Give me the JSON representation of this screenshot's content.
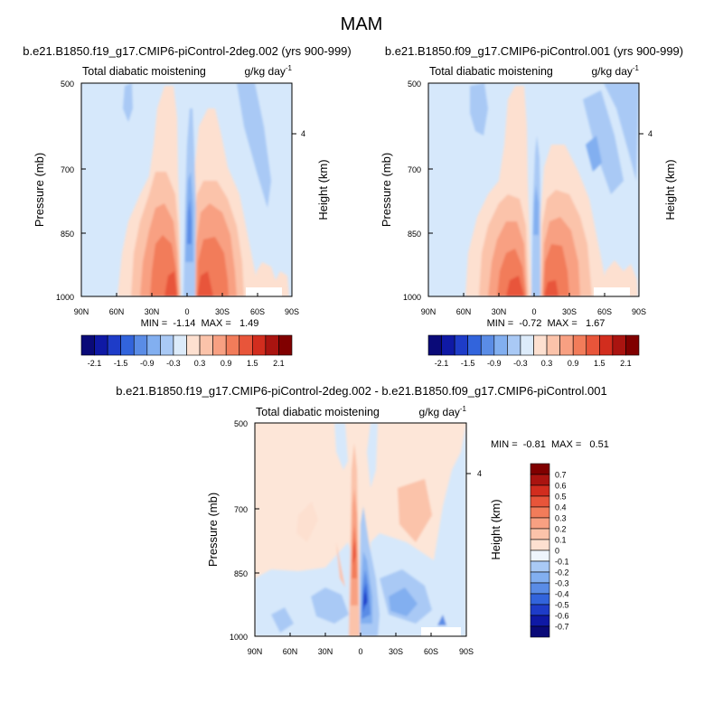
{
  "figure": {
    "title": "MAM"
  },
  "panels": {
    "p1": {
      "title": "b.e21.B1850.f19_g17.CMIP6-piControl-2deg.002 (yrs 900-999)",
      "left_label": "Total diabatic moistening",
      "units": "g/kg day",
      "units_exp": "-1",
      "ylabel": "Pressure (mb)",
      "ylabel_right": "Height (km)",
      "yticks": [
        "500",
        "700",
        "850",
        "1000"
      ],
      "right_tick": "4",
      "xticks": [
        "90N",
        "60N",
        "30N",
        "0",
        "30S",
        "60S",
        "90S"
      ],
      "stats": "MIN =  -1.14  MAX =   1.49"
    },
    "p2": {
      "title": "b.e21.B1850.f09_g17.CMIP6-piControl.001 (yrs 900-999)",
      "left_label": "Total diabatic moistening",
      "units": "g/kg day",
      "units_exp": "-1",
      "ylabel": "Pressure (mb)",
      "ylabel_right": "Height (km)",
      "yticks": [
        "500",
        "700",
        "850",
        "1000"
      ],
      "right_tick": "4",
      "xticks": [
        "90N",
        "60N",
        "30N",
        "0",
        "30S",
        "60S",
        "90S"
      ],
      "stats": "MIN =  -0.72  MAX =   1.67"
    },
    "p3": {
      "title": "b.e21.B1850.f19_g17.CMIP6-piControl-2deg.002 - b.e21.B1850.f09_g17.CMIP6-piControl.001",
      "left_label": "Total diabatic moistening",
      "units": "g/kg day",
      "units_exp": "-1",
      "ylabel": "Pressure (mb)",
      "ylabel_right": "Height (km)",
      "yticks": [
        "500",
        "700",
        "850",
        "1000"
      ],
      "right_tick": "4",
      "xticks": [
        "90N",
        "60N",
        "30N",
        "0",
        "30S",
        "60S",
        "90S"
      ],
      "stats": "MIN =  -0.81  MAX =   0.51"
    }
  },
  "colorbars": {
    "top": {
      "labels": [
        "-2.1",
        "-1.5",
        "-0.9",
        "-0.3",
        "0.3",
        "0.9",
        "1.5",
        "2.1"
      ],
      "colors": [
        "#0a0a78",
        "#0f19a5",
        "#1e3cc8",
        "#3264dc",
        "#5a8ce6",
        "#82aff0",
        "#a9c9f5",
        "#dcebfa",
        "#fde0d0",
        "#fbc3aa",
        "#f8a082",
        "#f27c5a",
        "#e8553a",
        "#d22d1e",
        "#aa1410",
        "#800000"
      ]
    },
    "diff": {
      "labels": [
        "0.7",
        "0.6",
        "0.5",
        "0.4",
        "0.3",
        "0.2",
        "0.1",
        "0",
        "-0.1",
        "-0.2",
        "-0.3",
        "-0.4",
        "-0.5",
        "-0.6",
        "-0.7"
      ],
      "colors": [
        "#800000",
        "#aa1410",
        "#d22d1e",
        "#e8553a",
        "#f27c5a",
        "#f8a082",
        "#fbc3aa",
        "#fde0d0",
        "#eef5fc",
        "#a9c9f5",
        "#82aff0",
        "#5a8ce6",
        "#3264dc",
        "#1e3cc8",
        "#0f19a5",
        "#0a0a78"
      ]
    }
  },
  "chart_data": [
    {
      "type": "heatmap",
      "title": "b.e21.B1850.f19_g17.CMIP6-piControl-2deg.002 (yrs 900-999)",
      "variable": "Total diabatic moistening",
      "units": "g/kg day-1",
      "x": [
        "90N",
        "60N",
        "30N",
        "0",
        "30S",
        "60S",
        "90S"
      ],
      "y_pressure_mb": [
        500,
        700,
        850,
        1000
      ],
      "xlim": [
        90,
        -90
      ],
      "ylim": [
        1000,
        500
      ],
      "min": -1.14,
      "max": 1.49
    },
    {
      "type": "heatmap",
      "title": "b.e21.B1850.f09_g17.CMIP6-piControl.001 (yrs 900-999)",
      "variable": "Total diabatic moistening",
      "units": "g/kg day-1",
      "x": [
        "90N",
        "60N",
        "30N",
        "0",
        "30S",
        "60S",
        "90S"
      ],
      "y_pressure_mb": [
        500,
        700,
        850,
        1000
      ],
      "xlim": [
        90,
        -90
      ],
      "ylim": [
        1000,
        500
      ],
      "min": -0.72,
      "max": 1.67
    },
    {
      "type": "heatmap",
      "title": "b.e21.B1850.f19_g17.CMIP6-piControl-2deg.002 - b.e21.B1850.f09_g17.CMIP6-piControl.001",
      "variable": "Total diabatic moistening (difference)",
      "units": "g/kg day-1",
      "x": [
        "90N",
        "60N",
        "30N",
        "0",
        "30S",
        "60S",
        "90S"
      ],
      "y_pressure_mb": [
        500,
        700,
        850,
        1000
      ],
      "xlim": [
        90,
        -90
      ],
      "ylim": [
        1000,
        500
      ],
      "min": -0.81,
      "max": 0.51
    }
  ]
}
